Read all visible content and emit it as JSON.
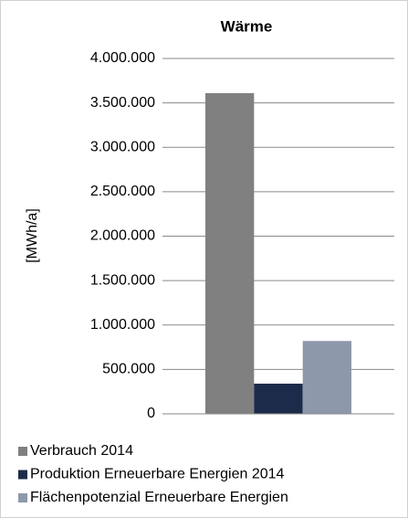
{
  "chart_data": {
    "type": "bar",
    "title": "Wärme",
    "y_label": "[MWh/a]",
    "categories": [
      null
    ],
    "series": [
      {
        "name": "Verbrauch 2014",
        "color": "#808080",
        "values": [
          3610000
        ]
      },
      {
        "name": "Produktion Erneuerbare Energien 2014",
        "color": "#1c2b4a",
        "values": [
          340000
        ]
      },
      {
        "name": "Flächenpotenzial Erneuerbare Energien",
        "color": "#8d99aa",
        "values": [
          820000
        ]
      }
    ],
    "ylim": [
      0,
      4000000
    ],
    "yticks": [
      0,
      {
        "value": 500000,
        "label": "500.000"
      },
      {
        "value": 1000000,
        "label": "1.000.000"
      },
      {
        "value": 1500000,
        "label": "1.500.000"
      },
      {
        "value": 2000000,
        "label": "2.000.000"
      },
      {
        "value": 2500000,
        "label": "2.500.000"
      },
      {
        "value": 3000000,
        "label": "3.000.000"
      },
      {
        "value": 3500000,
        "label": "3.500.000"
      },
      {
        "value": 4000000,
        "label": "4.000.000"
      }
    ],
    "grid": true,
    "legend": "bottom"
  }
}
